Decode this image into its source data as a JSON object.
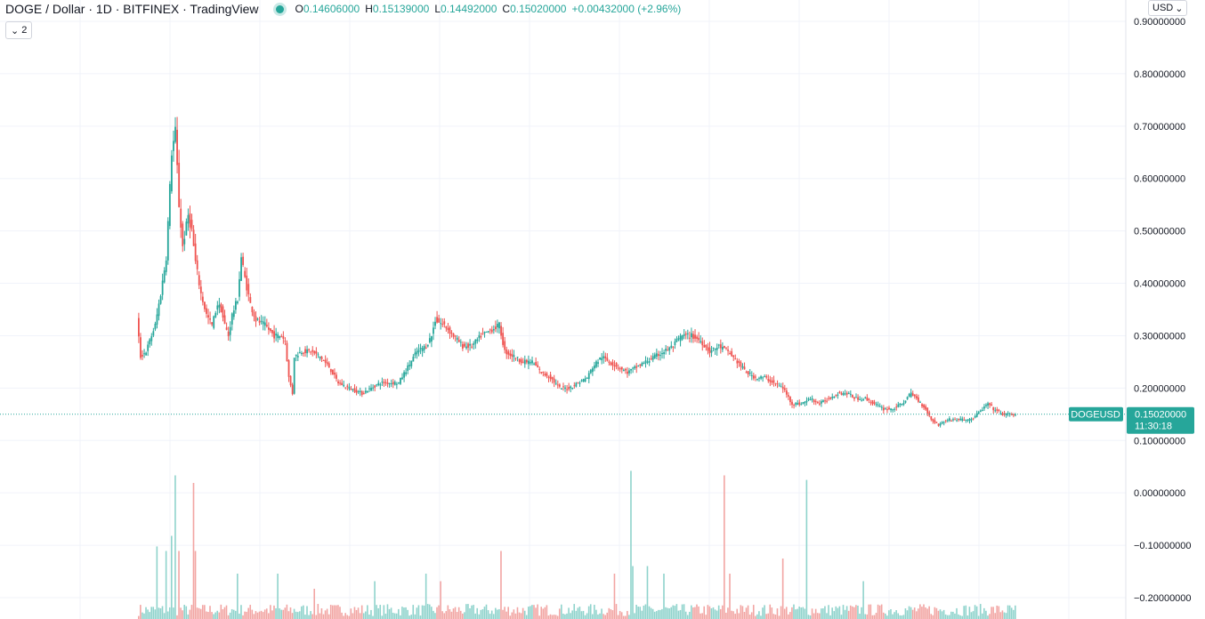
{
  "header": {
    "symbol_line": "DOGE / Dollar · 1D · BITFINEX · TradingView",
    "ohlc": {
      "open_key": "O",
      "open": "0.14606000",
      "high_key": "H",
      "high": "0.15139000",
      "low_key": "L",
      "low": "0.14492000",
      "close_key": "C",
      "close": "0.15020000",
      "change": "+0.00432000 (+2.96%)"
    },
    "collapsed_count": "2",
    "currency": "USD"
  },
  "price_labels": {
    "symbol_tag": "DOGEUSD",
    "last_price": "0.15020000",
    "countdown": "11:30:18"
  },
  "colors": {
    "up": "#26a69a",
    "down": "#ef5350",
    "volume_up": "#8fd3cc",
    "volume_down": "#f2a5a3",
    "grid": "#f0f3fa",
    "axis_text": "#131722"
  },
  "chart_data": {
    "type": "candlestick",
    "title": "DOGE / Dollar · 1D · BITFINEX",
    "y_axis": {
      "min": -0.2,
      "max": 0.9,
      "ticks": [
        "0.90000000",
        "0.80000000",
        "0.70000000",
        "0.60000000",
        "0.50000000",
        "0.40000000",
        "0.30000000",
        "0.20000000",
        "0.10000000",
        "0.00000000",
        "−0.10000000",
        "−0.20000000"
      ],
      "tick_values": [
        0.9,
        0.8,
        0.7,
        0.6,
        0.5,
        0.4,
        0.3,
        0.2,
        0.1,
        0.0,
        -0.1,
        -0.2
      ]
    },
    "last_price": 0.1502,
    "grid": true,
    "price_path": [
      [
        0,
        0.33
      ],
      [
        4,
        0.26
      ],
      [
        10,
        0.27
      ],
      [
        20,
        0.32
      ],
      [
        26,
        0.38
      ],
      [
        32,
        0.45
      ],
      [
        38,
        0.65
      ],
      [
        42,
        0.69
      ],
      [
        46,
        0.55
      ],
      [
        50,
        0.47
      ],
      [
        56,
        0.53
      ],
      [
        60,
        0.5
      ],
      [
        64,
        0.44
      ],
      [
        70,
        0.38
      ],
      [
        76,
        0.34
      ],
      [
        82,
        0.32
      ],
      [
        88,
        0.36
      ],
      [
        92,
        0.35
      ],
      [
        96,
        0.32
      ],
      [
        100,
        0.3
      ],
      [
        104,
        0.34
      ],
      [
        110,
        0.37
      ],
      [
        114,
        0.45
      ],
      [
        118,
        0.41
      ],
      [
        124,
        0.36
      ],
      [
        130,
        0.33
      ],
      [
        140,
        0.32
      ],
      [
        150,
        0.3
      ],
      [
        158,
        0.3
      ],
      [
        162,
        0.29
      ],
      [
        166,
        0.22
      ],
      [
        170,
        0.19
      ],
      [
        172,
        0.26
      ],
      [
        180,
        0.27
      ],
      [
        190,
        0.27
      ],
      [
        200,
        0.26
      ],
      [
        210,
        0.24
      ],
      [
        220,
        0.21
      ],
      [
        232,
        0.2
      ],
      [
        246,
        0.19
      ],
      [
        256,
        0.2
      ],
      [
        266,
        0.21
      ],
      [
        276,
        0.21
      ],
      [
        286,
        0.21
      ],
      [
        296,
        0.24
      ],
      [
        306,
        0.27
      ],
      [
        316,
        0.28
      ],
      [
        322,
        0.3
      ],
      [
        326,
        0.33
      ],
      [
        336,
        0.32
      ],
      [
        346,
        0.3
      ],
      [
        356,
        0.28
      ],
      [
        366,
        0.28
      ],
      [
        376,
        0.3
      ],
      [
        386,
        0.31
      ],
      [
        396,
        0.32
      ],
      [
        402,
        0.27
      ],
      [
        412,
        0.26
      ],
      [
        422,
        0.25
      ],
      [
        432,
        0.25
      ],
      [
        442,
        0.23
      ],
      [
        452,
        0.22
      ],
      [
        462,
        0.2
      ],
      [
        472,
        0.2
      ],
      [
        482,
        0.21
      ],
      [
        492,
        0.22
      ],
      [
        498,
        0.24
      ],
      [
        508,
        0.26
      ],
      [
        516,
        0.25
      ],
      [
        526,
        0.24
      ],
      [
        536,
        0.23
      ],
      [
        546,
        0.24
      ],
      [
        556,
        0.25
      ],
      [
        566,
        0.26
      ],
      [
        576,
        0.27
      ],
      [
        586,
        0.28
      ],
      [
        590,
        0.29
      ],
      [
        596,
        0.3
      ],
      [
        606,
        0.3
      ],
      [
        616,
        0.29
      ],
      [
        626,
        0.27
      ],
      [
        636,
        0.28
      ],
      [
        646,
        0.27
      ],
      [
        656,
        0.25
      ],
      [
        666,
        0.23
      ],
      [
        676,
        0.22
      ],
      [
        686,
        0.22
      ],
      [
        696,
        0.21
      ],
      [
        706,
        0.2
      ],
      [
        716,
        0.17
      ],
      [
        726,
        0.17
      ],
      [
        736,
        0.18
      ],
      [
        746,
        0.17
      ],
      [
        756,
        0.18
      ],
      [
        766,
        0.19
      ],
      [
        776,
        0.19
      ],
      [
        786,
        0.18
      ],
      [
        796,
        0.18
      ],
      [
        806,
        0.17
      ],
      [
        816,
        0.16
      ],
      [
        826,
        0.16
      ],
      [
        836,
        0.17
      ],
      [
        846,
        0.19
      ],
      [
        852,
        0.18
      ],
      [
        862,
        0.16
      ],
      [
        868,
        0.14
      ],
      [
        876,
        0.13
      ],
      [
        886,
        0.14
      ],
      [
        896,
        0.14
      ],
      [
        906,
        0.14
      ],
      [
        912,
        0.14
      ],
      [
        918,
        0.15
      ],
      [
        924,
        0.16
      ],
      [
        930,
        0.17
      ],
      [
        936,
        0.16
      ],
      [
        946,
        0.15
      ],
      [
        958,
        0.15
      ]
    ],
    "volume_spikes": [
      [
        20,
        0.48
      ],
      [
        30,
        0.45
      ],
      [
        36,
        0.55
      ],
      [
        40,
        0.95
      ],
      [
        44,
        0.45
      ],
      [
        60,
        0.9
      ],
      [
        62,
        0.45
      ],
      [
        108,
        0.3
      ],
      [
        152,
        0.3
      ],
      [
        192,
        0.2
      ],
      [
        258,
        0.25
      ],
      [
        314,
        0.3
      ],
      [
        330,
        0.25
      ],
      [
        396,
        0.45
      ],
      [
        520,
        0.3
      ],
      [
        538,
        0.98
      ],
      [
        540,
        0.35
      ],
      [
        556,
        0.35
      ],
      [
        574,
        0.3
      ],
      [
        640,
        0.95
      ],
      [
        646,
        0.3
      ],
      [
        704,
        0.4
      ],
      [
        730,
        0.92
      ],
      [
        792,
        0.25
      ]
    ],
    "volume_max_fraction": 1.0
  }
}
